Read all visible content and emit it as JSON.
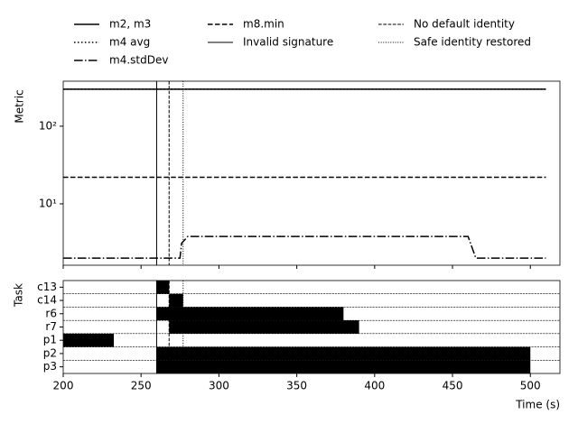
{
  "chart_data": [
    {
      "type": "line",
      "y_label": "Metric",
      "log_y": true,
      "xlim": [
        200,
        519
      ],
      "xticks": [
        200,
        250,
        300,
        350,
        400,
        450,
        500
      ],
      "ylim": [
        1.62,
        380
      ],
      "yticks": [
        {
          "value": 10,
          "label": "10¹"
        },
        {
          "value": 100,
          "label": "10²"
        }
      ],
      "series": [
        {
          "name": "m2, m3",
          "color": "#000000",
          "dash": "solid",
          "x": [
            200,
            510
          ],
          "values": [
            300,
            300
          ]
        },
        {
          "name": "m4 avg",
          "color": "#000000",
          "dash": "dotted",
          "x": [
            200,
            510
          ],
          "values": [
            300,
            300
          ]
        },
        {
          "name": "m4.stdDev",
          "color": "#000000",
          "dash": "dashdot",
          "x": [
            200,
            275,
            276,
            280,
            460,
            465,
            510
          ],
          "values": [
            2,
            2,
            3.1,
            3.8,
            3.8,
            2,
            2
          ]
        },
        {
          "name": "m8.min",
          "color": "#000000",
          "dash": "dashed",
          "x": [
            200,
            510
          ],
          "values": [
            22,
            22
          ]
        }
      ],
      "vlines": [
        {
          "name": "Invalid signature",
          "x": 260,
          "dash": "solid",
          "color": "#000000"
        },
        {
          "name": "No default identity",
          "x": 268,
          "dash": "dashed",
          "color": "#000000"
        },
        {
          "name": "Safe identity restored",
          "x": 277,
          "dash": "dotted",
          "color": "#000000"
        }
      ],
      "legend": "top"
    },
    {
      "type": "gantt",
      "x_label": "Time (s)",
      "y_label": "Task",
      "xlim": [
        200,
        519
      ],
      "xticks": [
        200,
        250,
        300,
        350,
        400,
        450,
        500
      ],
      "categories": [
        "c13",
        "c14",
        "r6",
        "r7",
        "p1",
        "p2",
        "p3"
      ],
      "starts": [
        260,
        268,
        260,
        268,
        200,
        260,
        260
      ],
      "ends": [
        268,
        277,
        380,
        390,
        232.5,
        500,
        500
      ],
      "color": "#000000",
      "row_separators": true,
      "vlines": [
        260,
        268,
        277
      ]
    }
  ]
}
